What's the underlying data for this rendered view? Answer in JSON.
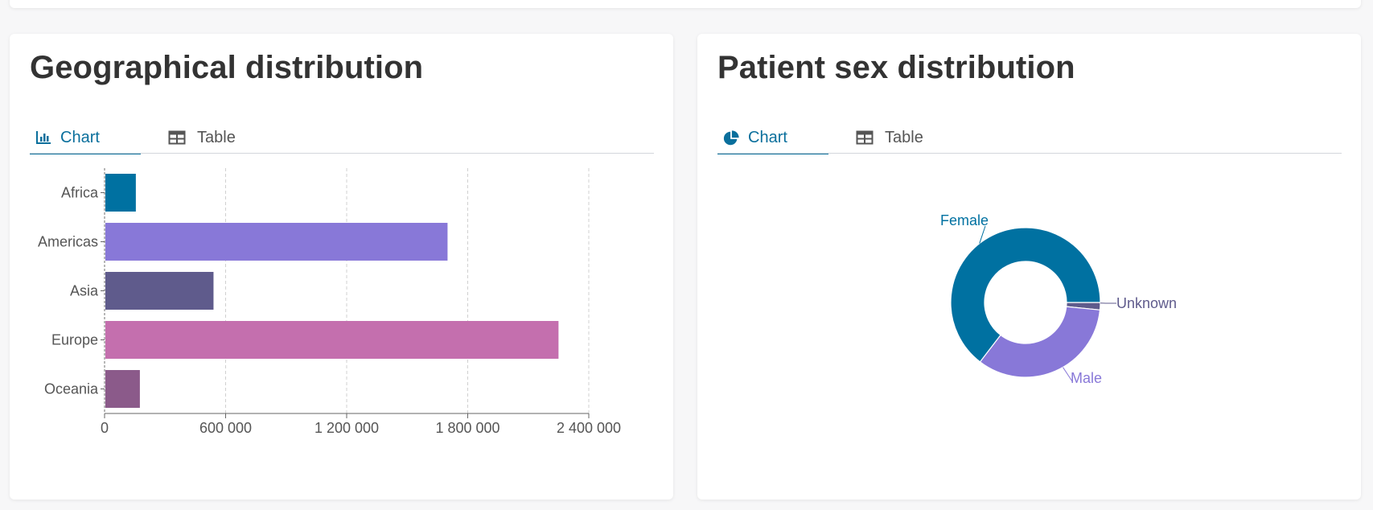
{
  "cards": [
    {
      "title": "Geographical distribution",
      "tabs": [
        {
          "label": "Chart",
          "icon": "bar-chart-icon",
          "active": true
        },
        {
          "label": "Table",
          "icon": "table-icon",
          "active": false
        }
      ]
    },
    {
      "title": "Patient sex distribution",
      "tabs": [
        {
          "label": "Chart",
          "icon": "pie-chart-icon",
          "active": true
        },
        {
          "label": "Table",
          "icon": "table-icon",
          "active": false
        }
      ]
    }
  ],
  "colors": {
    "accent": "#0a6f9c",
    "Africa": "#0071a1",
    "Americas": "#8878d8",
    "Asia": "#5f5b8c",
    "Europe": "#c46fae",
    "Oceania": "#8b5a8a",
    "Female": "#0071a1",
    "Male": "#8878d8",
    "Unknown": "#5f5b8c"
  },
  "chart_data": [
    {
      "type": "bar",
      "orientation": "horizontal",
      "categories": [
        "Africa",
        "Americas",
        "Asia",
        "Europe",
        "Oceania"
      ],
      "values": [
        155000,
        1700000,
        540000,
        2250000,
        175000
      ],
      "xlim": [
        0,
        2400000
      ],
      "xticks": [
        0,
        600000,
        1200000,
        1800000,
        2400000
      ],
      "xtick_labels": [
        "0",
        "600 000",
        "1 200 000",
        "1 800 000",
        "2 400 000"
      ],
      "grid": "vertical dashed"
    },
    {
      "type": "pie",
      "donut": true,
      "labels": [
        "Female",
        "Male",
        "Unknown"
      ],
      "values": [
        64.6,
        33.8,
        1.6
      ]
    }
  ]
}
